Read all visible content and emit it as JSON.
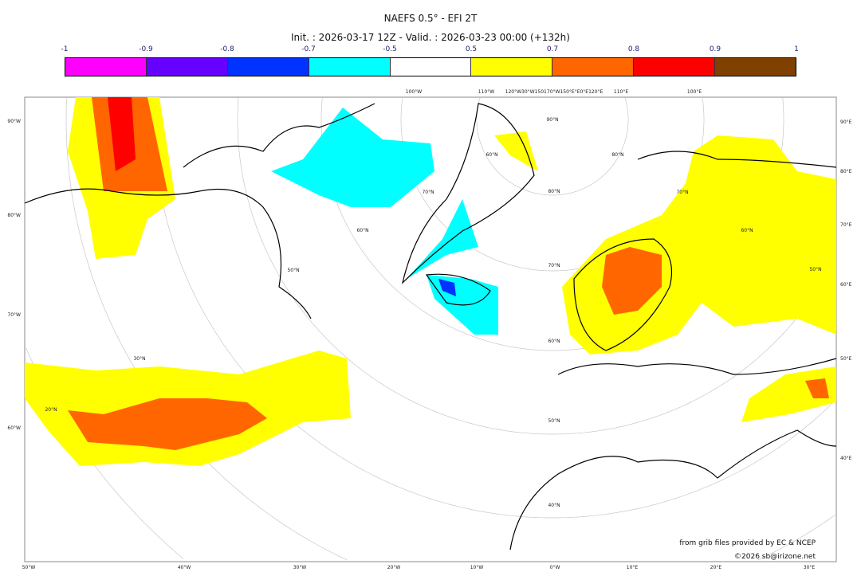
{
  "title": "NAEFS 0.5° - EFI 2T",
  "subtitle": "Init. : 2026-03-17 12Z - Valid. : 2026-03-23 00:00 (+132h)",
  "colorbar": {
    "ticks": [
      "-1",
      "-0.9",
      "-0.8",
      "-0.7",
      "-0.5",
      "0.5",
      "0.7",
      "0.8",
      "0.9",
      "1"
    ],
    "colors": [
      "#ff00ff",
      "#6600ff",
      "#0033ff",
      "#00ffff",
      "#ffffff",
      "#ffff00",
      "#ff6600",
      "#ff0000",
      "#804000"
    ]
  },
  "map": {
    "left_labels": [
      "90°W",
      "80°W",
      "70°W",
      "60°W"
    ],
    "right_labels": [
      "90°E",
      "80°E",
      "70°E",
      "60°E",
      "50°E",
      "40°E"
    ],
    "bottom_labels": [
      "50°W",
      "40°W",
      "30°W",
      "20°W",
      "10°W",
      "0°W",
      "10°E",
      "20°E",
      "30°E"
    ],
    "top_labels": [
      "100°W",
      "110°W",
      "120°W30°W150170°W150°E°E0°E120°E",
      "110°E",
      "100°E"
    ],
    "lat_labels": [
      "90°N",
      "80°N",
      "70°N",
      "60°N",
      "50°N",
      "40°N",
      "30°N",
      "20°N",
      "70°N",
      "60°N",
      "50°N",
      "60°N",
      "70°N",
      "60°N",
      "50°N",
      "80°N"
    ],
    "land_color": "#ffffff",
    "coast_color": "#000000"
  },
  "credits": {
    "source": "from grib files provided by EC & NCEP",
    "copyright": "©2026 sb@irizone.net"
  }
}
